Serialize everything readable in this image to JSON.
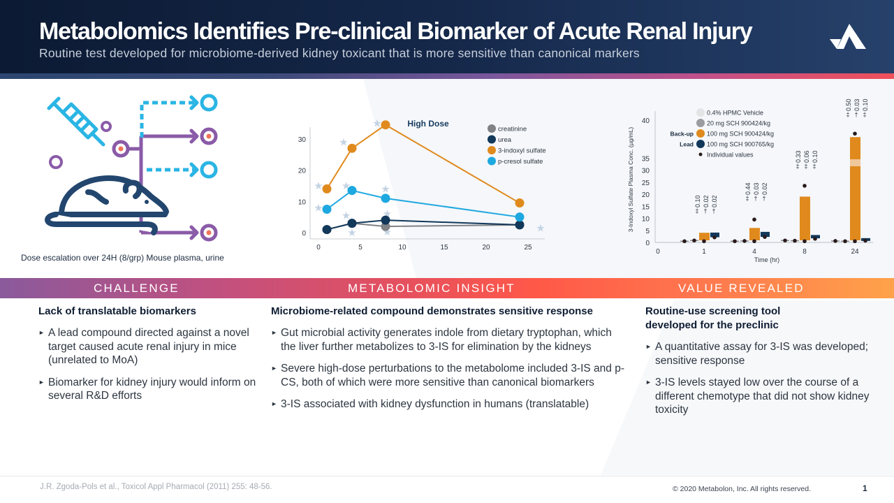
{
  "header": {
    "title": "Metabolomics Identifies Pre-clinical Biomarker of Acute Renal Injury",
    "subtitle": "Routine test developed for microbiome-derived kidney toxicant that is more sensitive than canonical markers",
    "logo_icon": "metabolon-logo-icon"
  },
  "illustration": {
    "icon": "mouse-dosing-icon",
    "caption": "Dose escalation over 24H (8/grp) Mouse plasma, urine"
  },
  "sections": {
    "challenge": {
      "label": "CHALLENGE",
      "heading": "Lack of translatable biomarkers",
      "bullets": [
        "A lead compound directed against a novel target caused acute renal injury in mice (unrelated to MoA)",
        "Biomarker for kidney injury would inform on several R&D efforts"
      ]
    },
    "insight": {
      "label": "METABOLOMIC INSIGHT",
      "heading": "Microbiome-related compound demonstrates sensitive response",
      "bullets": [
        "Gut microbial activity generates indole from dietary tryptophan, which the liver further metabolizes to 3-IS for elimination by the kidneys",
        "Severe high-dose perturbations to the metabolome included 3-IS and p-CS, both of which were more sensitive than canonical biomarkers",
        "3-IS associated with kidney dysfunction in humans (translatable)"
      ]
    },
    "value": {
      "label": "VALUE REVEALED",
      "heading": "Routine-use screening tool developed for the preclinic",
      "bullets": [
        "A quantitative assay for 3-IS was developed; sensitive response",
        "3-IS levels stayed low over the course of a different chemotype that did not show kidney toxicity"
      ]
    }
  },
  "footer": {
    "citation": "J.R. Zgoda-Pols et al., Toxicol Appl Pharmacol (2011) 255: 48-56.",
    "copyright": "© 2020 Metabolon, Inc. All rights reserved.",
    "page_number": "1"
  },
  "colors": {
    "creatinine": "#808285",
    "urea": "#12385a",
    "indoxyl": "#e08a1e",
    "pcresol": "#1ea8e0",
    "vehicle": "#e3e4e6",
    "navy": "#12385a"
  },
  "chart_data": [
    {
      "type": "line",
      "title": "High Dose",
      "xlabel": "",
      "ylabel": "",
      "x_ticks": [
        0,
        5,
        10,
        15,
        20,
        25
      ],
      "y_ticks": [
        0,
        10,
        20,
        30
      ],
      "xlim": [
        -1,
        27
      ],
      "ylim": [
        -2,
        36
      ],
      "grid": false,
      "legend_position": "top-right",
      "x": [
        1,
        4,
        8,
        24
      ],
      "series": [
        {
          "name": "creatinine",
          "values": [
            1,
            3,
            2,
            2.5
          ]
        },
        {
          "name": "urea",
          "values": [
            1,
            3,
            4,
            2.5
          ]
        },
        {
          "name": "3-indoxyl sulfate",
          "values": [
            14,
            27,
            34.5,
            9.5
          ]
        },
        {
          "name": "p-cresol sulfate",
          "values": [
            7.5,
            13.5,
            11,
            5
          ]
        }
      ],
      "annotations": "star markers indicating significance near data points"
    },
    {
      "type": "bar",
      "title": "",
      "xlabel": "Time (hr)",
      "ylabel": "3-Indoxyl Sulfate Plasma Conc. (µg/mL)",
      "categories": [
        "1",
        "4",
        "8",
        "24"
      ],
      "x_tick_zero": "0",
      "y_ticks": [
        0,
        5,
        10,
        15,
        20,
        25,
        30,
        35,
        40
      ],
      "legend_position": "top-left",
      "series": [
        {
          "name": "0.4% HPMC Vehicle",
          "values": [
            0.5,
            0.5,
            0.8,
            0.6
          ]
        },
        {
          "name": "20 mg SCH 900424/kg",
          "values": [
            0.8,
            0.6,
            0.7,
            0.5
          ]
        },
        {
          "name": "100 mg SCH 900424/kg",
          "label": "Back-up",
          "values": [
            4,
            6,
            19,
            38
          ]
        },
        {
          "name": "100 mg SCH 900765/kg",
          "label": "Lead",
          "values": [
            3.5,
            3.8,
            2.5,
            1.2
          ]
        }
      ],
      "legend_extra": "Individual values",
      "p_values": [
        [
          "0.10",
          "0.02",
          "0.02"
        ],
        [
          "0.44",
          "0.03",
          "0.02"
        ],
        [
          "0.33",
          "0.06",
          "0.10"
        ],
        [
          "0.50",
          "0.03",
          "0.10"
        ]
      ],
      "significance_symbols": [
        [
          "‡",
          "†",
          "†"
        ],
        [
          "‡",
          "†",
          "†"
        ],
        [
          "‡",
          "‡",
          "‡"
        ],
        [
          "‡",
          "†",
          "‡"
        ]
      ]
    }
  ]
}
